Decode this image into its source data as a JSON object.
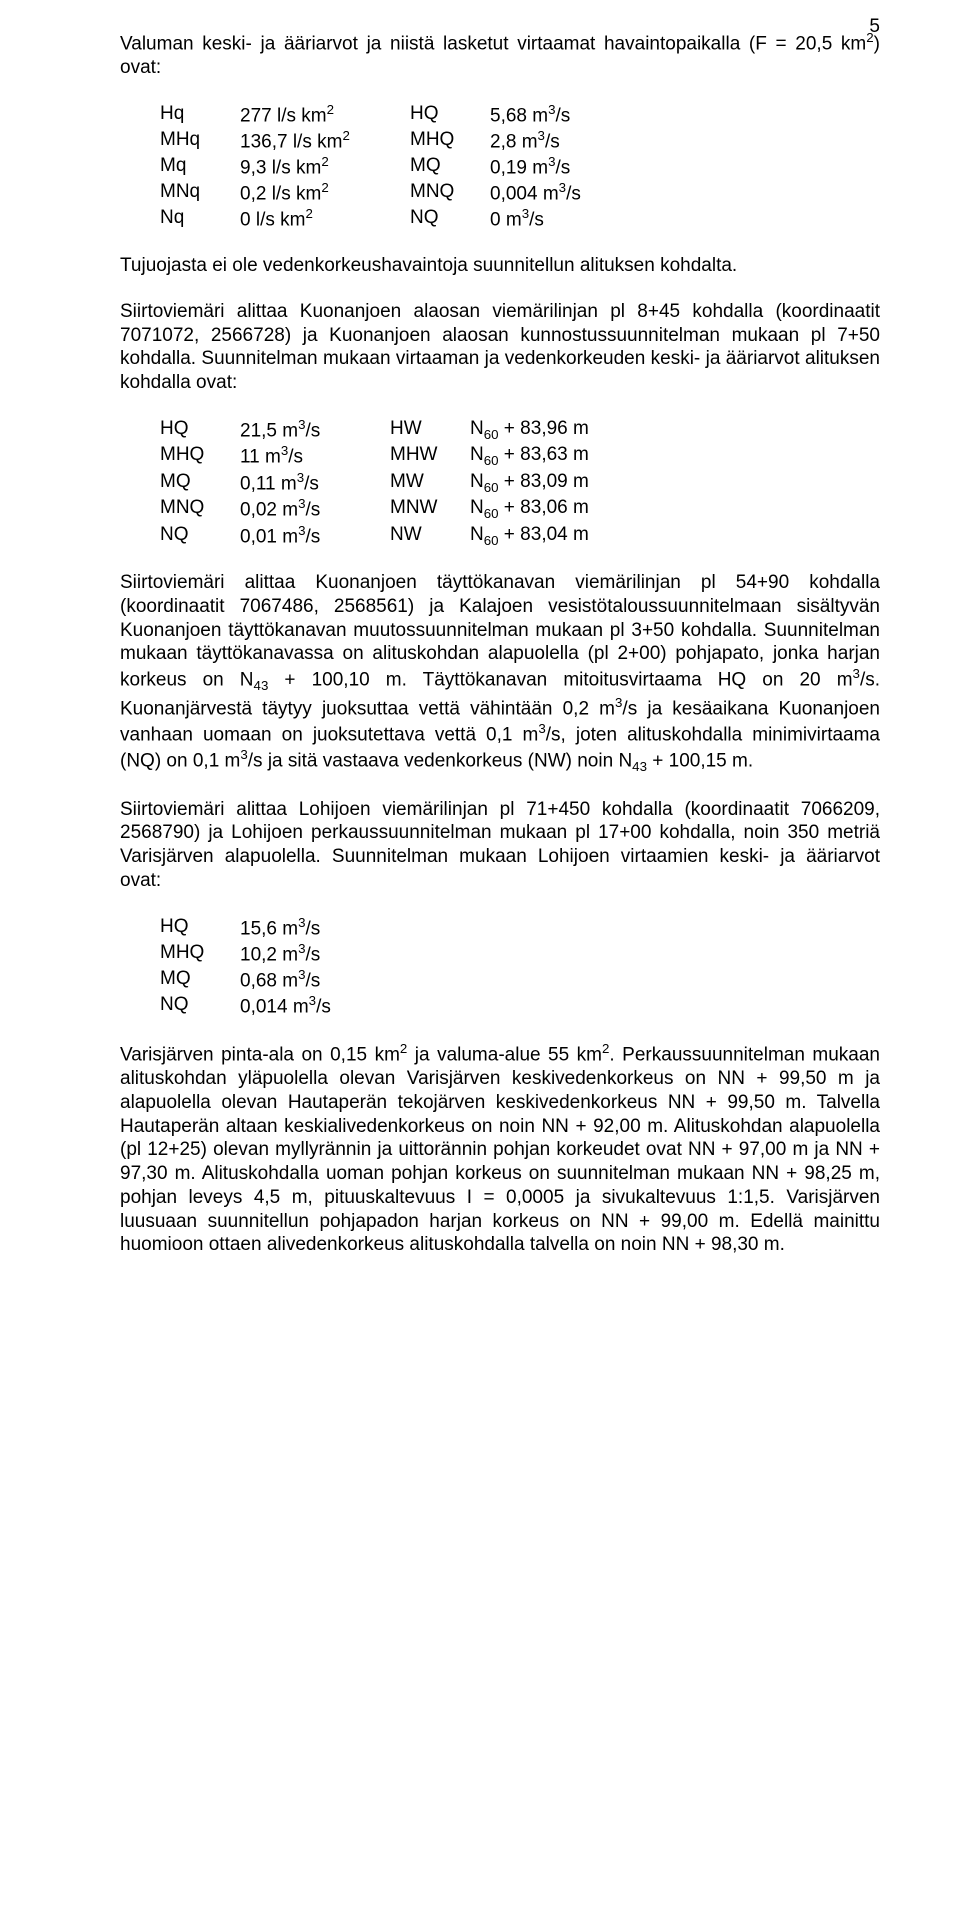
{
  "page_number": "5",
  "p1": "Valuman keski- ja ääriarvot ja niistä lasketut virtaamat havaintopaikalla (F = 20,5 km²) ovat:",
  "tableA": {
    "rows": [
      {
        "c1": "Hq",
        "c2": "277 l/s km²",
        "c3": "HQ",
        "c4": "5,68 m³/s"
      },
      {
        "c1": "MHq",
        "c2": "136,7 l/s km²",
        "c3": "MHQ",
        "c4": "2,8 m³/s"
      },
      {
        "c1": "Mq",
        "c2": "9,3 l/s km²",
        "c3": "MQ",
        "c4": "0,19 m³/s"
      },
      {
        "c1": "MNq",
        "c2": "0,2 l/s km²",
        "c3": "MNQ",
        "c4": "0,004 m³/s"
      },
      {
        "c1": "Nq",
        "c2": "0 l/s km²",
        "c3": "NQ",
        "c4": "0 m³/s"
      }
    ]
  },
  "p2": "Tujuojasta ei ole vedenkorkeushavaintoja suunnitellun alituksen kohdalta.",
  "p3": "Siirtoviemäri alittaa Kuonanjoen alaosan viemärilinjan pl 8+45 kohdalla (koordinaatit 7071072, 2566728) ja Kuonanjoen alaosan kunnostussuunnitelman mukaan pl 7+50 kohdalla. Suunnitelman mukaan virtaaman ja vedenkorkeuden keski- ja ääriarvot alituksen kohdalla ovat:",
  "tableB": {
    "rows": [
      {
        "c1": "HQ",
        "c2": "21,5 m³/s",
        "c3": "HW",
        "c4_pre": "N",
        "c4_sub": "60",
        "c4_post": " + 83,96 m"
      },
      {
        "c1": "MHQ",
        "c2": "11 m³/s",
        "c3": "MHW",
        "c4_pre": "N",
        "c4_sub": "60",
        "c4_post": " + 83,63 m"
      },
      {
        "c1": "MQ",
        "c2": "0,11 m³/s",
        "c3": "MW",
        "c4_pre": "N",
        "c4_sub": "60",
        "c4_post": " + 83,09 m"
      },
      {
        "c1": "MNQ",
        "c2": "0,02 m³/s",
        "c3": "MNW",
        "c4_pre": "N",
        "c4_sub": "60",
        "c4_post": " + 83,06 m"
      },
      {
        "c1": "NQ",
        "c2": "0,01 m³/s",
        "c3": "NW",
        "c4_pre": "N",
        "c4_sub": "60",
        "c4_post": " + 83,04 m"
      }
    ]
  },
  "p4_parts": [
    "Siirtoviemäri alittaa Kuonanjoen täyttökanavan viemärilinjan pl 54+90 kohdalla (koordinaatit 7067486, 2568561) ja Kalajoen vesistötaloussuunnitelmaan sisältyvän Kuonanjoen täyttökanavan muutossuunnitelman mukaan pl 3+50 kohdalla. Suunnitelman mukaan täyttökanavassa on alituskohdan alapuolella (pl 2+00) pohjapato, jonka harjan korkeus on N",
    "43",
    " + 100,10 m. Täyttökanavan mitoitusvirtaama HQ on 20 m³/s. Kuonanjärvestä täytyy juoksuttaa vettä vähintään 0,2 m³/s ja kesäaikana Kuonanjoen vanhaan uomaan on juoksutettava vettä 0,1 m³/s, joten alituskohdalla minimivirtaama (NQ) on 0,1 m³/s ja sitä vastaava vedenkorkeus (NW) noin N",
    "43",
    " + 100,15 m."
  ],
  "p5": "Siirtoviemäri alittaa Lohijoen viemärilinjan pl 71+450 kohdalla (koordinaatit 7066209, 2568790) ja Lohijoen perkaussuunnitelman mukaan pl 17+00 kohdalla, noin 350 metriä Varisjärven alapuolella. Suunnitelman mukaan Lohijoen virtaamien keski- ja ääriarvot ovat:",
  "tableC": {
    "rows": [
      {
        "c1": "HQ",
        "c2": "15,6 m³/s"
      },
      {
        "c1": "MHQ",
        "c2": "10,2 m³/s"
      },
      {
        "c1": "MQ",
        "c2": "0,68 m³/s"
      },
      {
        "c1": "NQ",
        "c2": "0,014 m³/s"
      }
    ]
  },
  "p6": "Varisjärven pinta-ala on 0,15 km² ja valuma-alue 55 km². Perkaussuunnitelman mukaan alituskohdan yläpuolella olevan Varisjärven keskivedenkorkeus on NN + 99,50 m ja alapuolella olevan Hautaperän tekojärven keskivedenkorkeus NN + 99,50 m. Talvella Hautaperän altaan keskialivedenkorkeus on noin NN + 92,00 m. Alituskohdan alapuolella (pl 12+25) olevan myllyrännin ja uittorännin pohjan korkeudet ovat NN + 97,00 m ja NN + 97,30 m. Alituskohdalla uoman pohjan korkeus on suunnitelman mukaan NN + 98,25 m, pohjan leveys 4,5 m, pituuskaltevuus I = 0,0005 ja sivukaltevuus 1:1,5. Varisjärven luusuaan suunnitellun pohjapadon harjan korkeus on NN + 99,00 m. Edellä mainittu huomioon ottaen alivedenkorkeus alituskohdalla talvella on noin NN + 98,30 m."
}
